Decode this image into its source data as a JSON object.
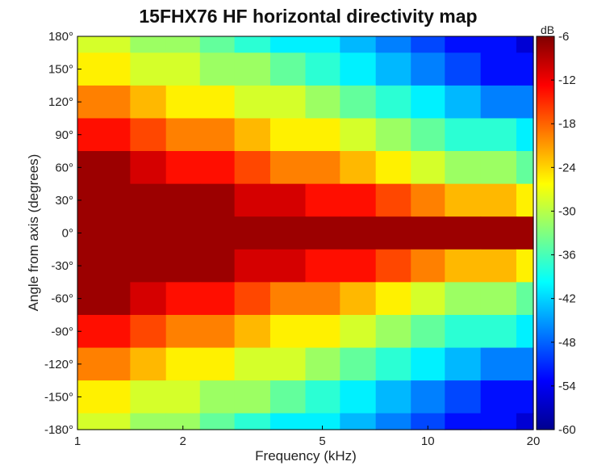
{
  "chart_data": {
    "type": "heatmap",
    "title": "15FHX76 HF horizontal directivity map",
    "xlabel": "Frequency (kHz)",
    "ylabel": "Angle from axis (degrees)",
    "x_scale": "log",
    "xlim": [
      1,
      20
    ],
    "ylim": [
      -180,
      180
    ],
    "x_ticks": [
      1,
      2,
      5,
      10,
      20
    ],
    "x_tick_labels": [
      "1",
      "2",
      "5",
      "10",
      "20"
    ],
    "y_ticks": [
      180,
      150,
      120,
      90,
      60,
      30,
      0,
      -30,
      -60,
      -90,
      -120,
      -150,
      -180
    ],
    "y_tick_labels": [
      "180°",
      "150°",
      "120°",
      "90°",
      "60°",
      "30°",
      "0°",
      "-30°",
      "-60°",
      "-90°",
      "-120°",
      "-150°",
      "-180°"
    ],
    "colorbar": {
      "unit": "dB",
      "range": [
        -60,
        -6
      ],
      "ticks": [
        -6,
        -12,
        -18,
        -24,
        -30,
        -36,
        -42,
        -48,
        -54,
        -60
      ],
      "tick_labels": [
        "-6",
        "-12",
        "-18",
        "-24",
        "-30",
        "-36",
        "-42",
        "-48",
        "-54",
        "-60"
      ],
      "colormap": "jet"
    },
    "frequencies_khz": [
      1,
      1.25,
      1.6,
      2,
      2.5,
      3.15,
      4,
      5,
      6.3,
      8,
      10,
      12.5,
      16,
      20
    ],
    "angles_deg": [
      180,
      150,
      120,
      90,
      60,
      30,
      0,
      -30,
      -60,
      -90,
      -120,
      -150,
      -180
    ],
    "levels_db": [
      [
        -28,
        -30,
        -31,
        -33,
        -36,
        -38,
        -40,
        -42,
        -44,
        -46,
        -50,
        -52,
        -54,
        -55
      ],
      [
        -25,
        -26,
        -28,
        -29,
        -31,
        -33,
        -36,
        -37,
        -40,
        -43,
        -46,
        -49,
        -52,
        -53
      ],
      [
        -19,
        -20,
        -22,
        -25,
        -27,
        -28,
        -30,
        -33,
        -35,
        -38,
        -41,
        -44,
        -47,
        -48
      ],
      [
        -14,
        -15,
        -17,
        -19,
        -20,
        -23,
        -26,
        -26,
        -29,
        -31,
        -34,
        -37,
        -39,
        -41
      ],
      [
        -8,
        -9,
        -10,
        -14,
        -15,
        -17,
        -20,
        -21,
        -23,
        -26,
        -29,
        -32,
        -33,
        -35
      ],
      [
        -6,
        -6,
        -6,
        -7,
        -9,
        -10,
        -12,
        -14,
        -15,
        -17,
        -19,
        -22,
        -23,
        -26
      ],
      [
        -6,
        -6,
        -6,
        -6,
        -6,
        -6,
        -6,
        -6,
        -6,
        -6,
        -6,
        -6,
        -6,
        -6
      ],
      [
        -6,
        -6,
        -6,
        -7,
        -9,
        -10,
        -12,
        -14,
        -15,
        -17,
        -19,
        -22,
        -23,
        -26
      ],
      [
        -8,
        -9,
        -10,
        -14,
        -15,
        -17,
        -20,
        -21,
        -23,
        -26,
        -29,
        -32,
        -33,
        -35
      ],
      [
        -14,
        -15,
        -17,
        -19,
        -20,
        -23,
        -26,
        -26,
        -29,
        -31,
        -34,
        -37,
        -39,
        -41
      ],
      [
        -19,
        -20,
        -22,
        -25,
        -27,
        -28,
        -30,
        -33,
        -35,
        -38,
        -41,
        -44,
        -47,
        -48
      ],
      [
        -25,
        -26,
        -28,
        -29,
        -31,
        -33,
        -36,
        -37,
        -40,
        -43,
        -46,
        -49,
        -52,
        -53
      ],
      [
        -28,
        -30,
        -31,
        -33,
        -36,
        -38,
        -40,
        -42,
        -44,
        -46,
        -50,
        -52,
        -54,
        -55
      ]
    ]
  }
}
